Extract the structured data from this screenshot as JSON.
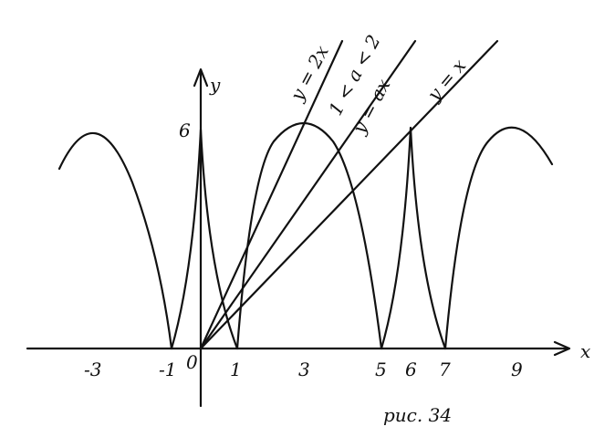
{
  "axes": {
    "x_label": "x",
    "y_label": "y"
  },
  "x_ticks": [
    "-3",
    "-1",
    "0",
    "1",
    "3",
    "5",
    "6",
    "7",
    "9"
  ],
  "y_ticks": [
    "6"
  ],
  "line_labels": [
    "y = 2x",
    "1 < a < 2",
    "y = ax",
    "y = x"
  ],
  "caption": "рис. 34"
}
